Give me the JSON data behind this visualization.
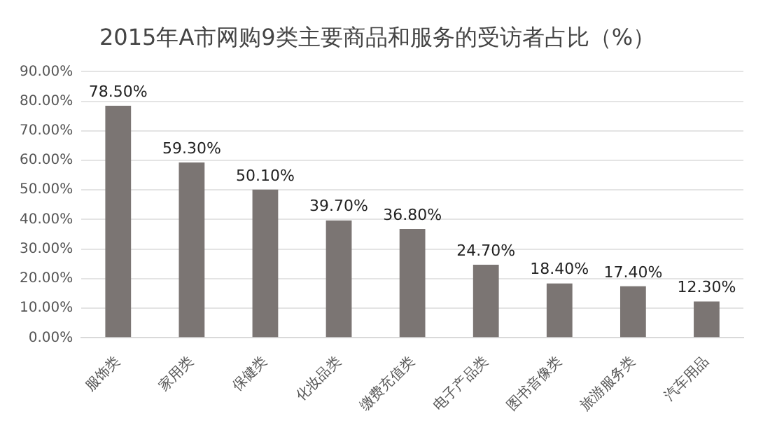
{
  "chart_data": {
    "type": "bar",
    "title": "2015年A市网购9类主要商品和服务的受访者占比（%）",
    "categories": [
      "服饰类",
      "家用类",
      "保健类",
      "化妆品类",
      "缴费充值类",
      "电子产品类",
      "图书音像类",
      "旅游服务类",
      "汽车用品"
    ],
    "values": [
      78.5,
      59.3,
      50.1,
      39.7,
      36.8,
      24.7,
      18.4,
      17.4,
      12.3
    ],
    "value_labels": [
      "78.50%",
      "59.30%",
      "50.10%",
      "39.70%",
      "36.80%",
      "24.70%",
      "18.40%",
      "17.40%",
      "12.30%"
    ],
    "color": "#7b7573",
    "ylim": [
      0,
      90
    ],
    "yticks": [
      {
        "value": 0,
        "label": "0.00%"
      },
      {
        "value": 10,
        "label": "10.00%"
      },
      {
        "value": 20,
        "label": "20.00%"
      },
      {
        "value": 30,
        "label": "30.00%"
      },
      {
        "value": 40,
        "label": "40.00%"
      },
      {
        "value": 50,
        "label": "50.00%"
      },
      {
        "value": 60,
        "label": "60.00%"
      },
      {
        "value": 70,
        "label": "70.00%"
      },
      {
        "value": 80,
        "label": "80.00%"
      },
      {
        "value": 90,
        "label": "90.00%"
      }
    ],
    "grid": "y"
  }
}
